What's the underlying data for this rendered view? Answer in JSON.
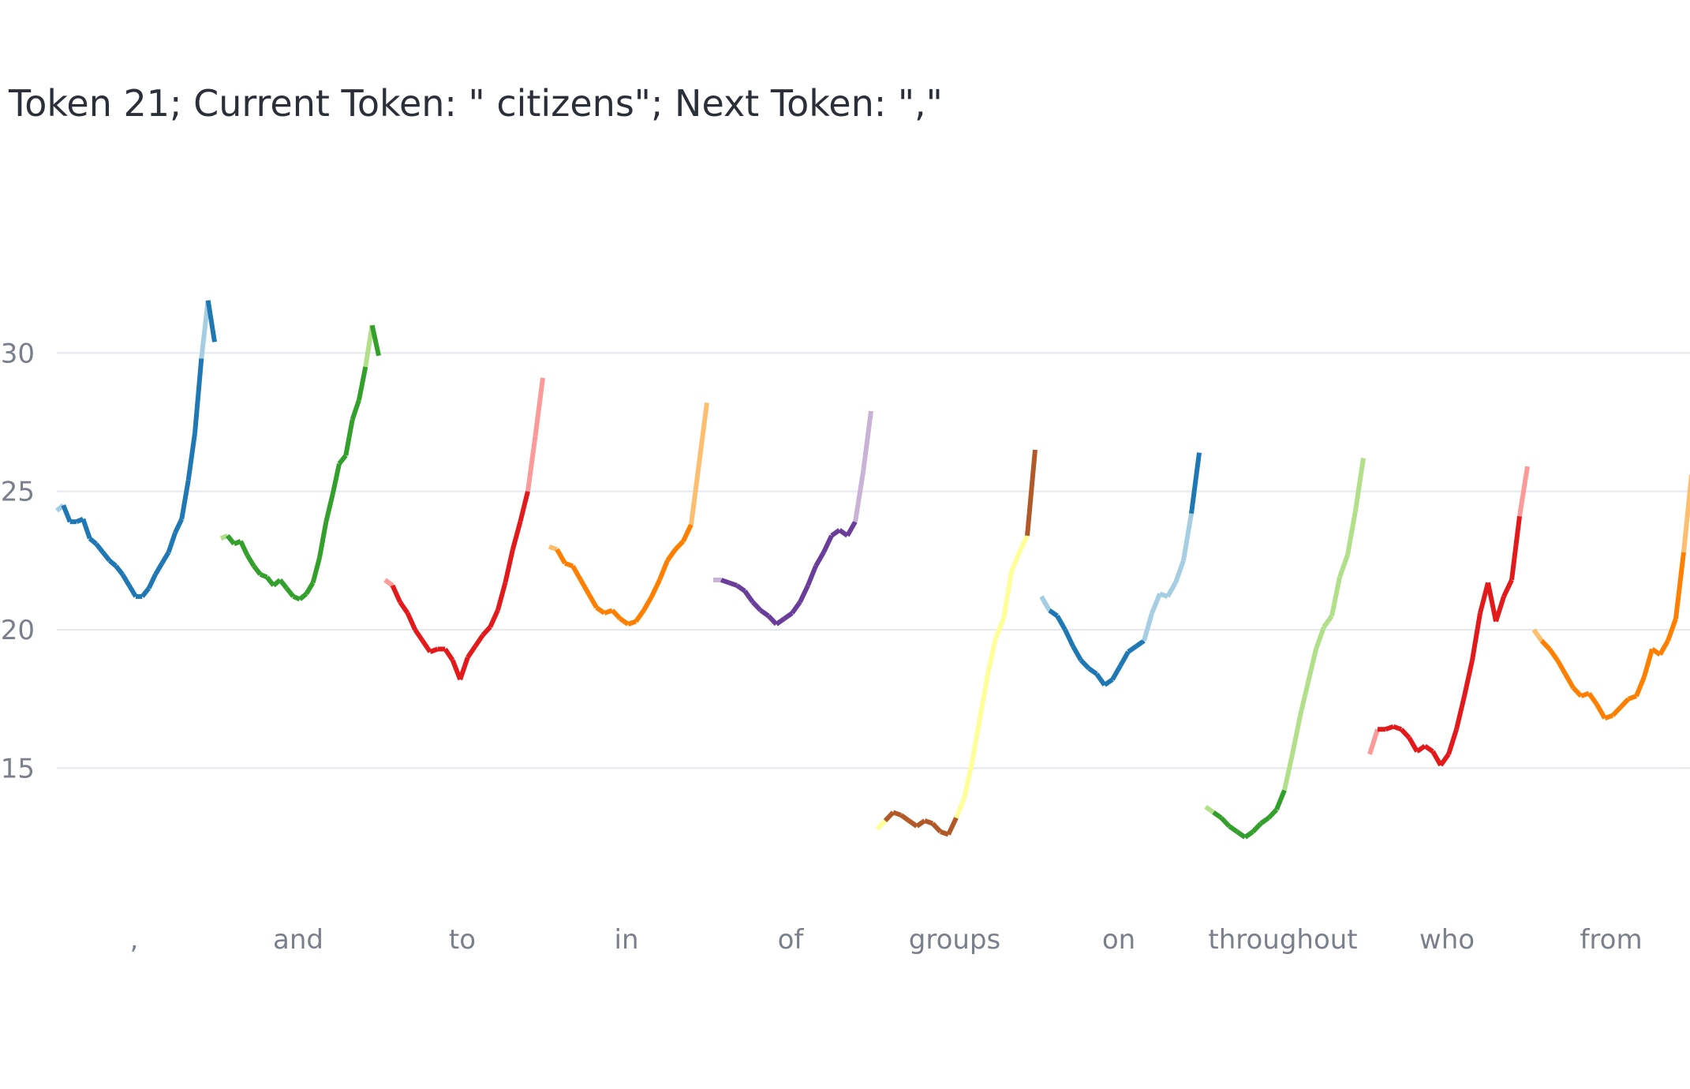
{
  "chart_data": {
    "type": "line",
    "title": "Token 21; Current Token: \" citizens\"; Next Token: \",\"",
    "xlabel": "",
    "ylabel": "",
    "ylim": [
      10.96,
      33.06
    ],
    "yticks": [
      "15",
      "20",
      "25",
      "30"
    ],
    "grid": true,
    "legend": "none",
    "series": [
      {
        "label": ",",
        "color": "#1f78b4",
        "light": "#a6cee3",
        "y": [
          24.3,
          24.5,
          23.9,
          23.9,
          24.0,
          23.3,
          23.1,
          22.8,
          22.5,
          22.3,
          22.0,
          21.6,
          21.2,
          21.2,
          21.5,
          22.0,
          22.4,
          22.8,
          23.5,
          24.0,
          25.4,
          27.1,
          29.8,
          31.9,
          30.4
        ],
        "light_x_range": [
          22,
          23
        ]
      },
      {
        "label": "and",
        "color": "#33a02c",
        "light": "#b2df8a",
        "y": [
          23.3,
          23.4,
          23.1,
          23.2,
          22.7,
          22.3,
          22.0,
          21.9,
          21.6,
          21.8,
          21.5,
          21.2,
          21.1,
          21.3,
          21.7,
          22.6,
          23.9,
          24.9,
          26.0,
          26.3,
          27.6,
          28.3,
          29.5,
          31.0,
          29.9
        ],
        "light_x_range": [
          22,
          23
        ]
      },
      {
        "label": "to",
        "color": "#e31a1c",
        "light": "#fb9a99",
        "y": [
          21.8,
          21.6,
          21.0,
          20.6,
          20.0,
          19.6,
          19.2,
          19.3,
          19.3,
          18.9,
          18.2,
          19.0,
          19.4,
          19.8,
          20.1,
          20.7,
          21.7,
          22.9,
          23.9,
          25.0,
          27.0,
          29.1
        ],
        "light_x_range": [
          19,
          21
        ]
      },
      {
        "label": "in",
        "color": "#ff7f00",
        "light": "#fdbf6f",
        "y": [
          23.0,
          22.9,
          22.4,
          22.3,
          21.8,
          21.3,
          20.8,
          20.6,
          20.7,
          20.4,
          20.2,
          20.3,
          20.7,
          21.2,
          21.8,
          22.5,
          22.9,
          23.2,
          23.8,
          26.0,
          28.2
        ],
        "light_x_range": [
          18,
          20
        ]
      },
      {
        "label": "of",
        "color": "#6a3d9a",
        "light": "#cab2d6",
        "y": [
          21.8,
          21.8,
          21.7,
          21.6,
          21.4,
          21.0,
          20.7,
          20.5,
          20.2,
          20.4,
          20.6,
          21.0,
          21.6,
          22.3,
          22.8,
          23.4,
          23.6,
          23.4,
          23.9,
          25.7,
          27.9
        ],
        "light_x_range": [
          18,
          20
        ]
      },
      {
        "label": "groups",
        "color": "#b15928",
        "light": "#ffff99",
        "y": [
          12.8,
          13.1,
          13.4,
          13.3,
          13.1,
          12.9,
          13.1,
          13.0,
          12.7,
          12.6,
          13.2,
          13.9,
          15.2,
          16.8,
          18.4,
          19.7,
          20.4,
          22.1,
          22.8,
          23.4,
          26.5
        ],
        "light_x_range": [
          10,
          19
        ]
      },
      {
        "label": "on",
        "color": "#1f78b4",
        "light": "#a6cee3",
        "y": [
          21.2,
          20.7,
          20.5,
          20.0,
          19.4,
          18.9,
          18.6,
          18.4,
          18.0,
          18.2,
          18.7,
          19.2,
          19.4,
          19.6,
          20.6,
          21.3,
          21.2,
          21.7,
          22.5,
          24.2,
          26.4
        ],
        "light_x_range": [
          13,
          19
        ]
      },
      {
        "label": "throughout",
        "color": "#33a02c",
        "light": "#b2df8a",
        "y": [
          13.6,
          13.4,
          13.2,
          12.9,
          12.7,
          12.5,
          12.7,
          13.0,
          13.2,
          13.5,
          14.2,
          15.5,
          16.9,
          18.1,
          19.3,
          20.1,
          20.5,
          21.9,
          22.7,
          24.3,
          26.2
        ],
        "light_x_range": [
          10,
          20
        ]
      },
      {
        "label": "who",
        "color": "#e31a1c",
        "light": "#fb9a99",
        "y": [
          15.5,
          16.4,
          16.4,
          16.5,
          16.4,
          16.1,
          15.6,
          15.8,
          15.6,
          15.1,
          15.5,
          16.4,
          17.6,
          18.9,
          20.6,
          21.7,
          20.3,
          21.2,
          21.8,
          24.1,
          25.9
        ],
        "light_x_range": [
          19,
          20
        ]
      },
      {
        "label": "from",
        "color": "#ff7f00",
        "light": "#fdbf6f",
        "y": [
          20.0,
          19.6,
          19.3,
          18.9,
          18.4,
          17.9,
          17.6,
          17.7,
          17.3,
          16.8,
          16.9,
          17.2,
          17.5,
          17.6,
          18.3,
          19.3,
          19.1,
          19.6,
          20.4,
          22.8,
          25.6
        ],
        "light_x_range": [
          19,
          20
        ]
      }
    ]
  }
}
